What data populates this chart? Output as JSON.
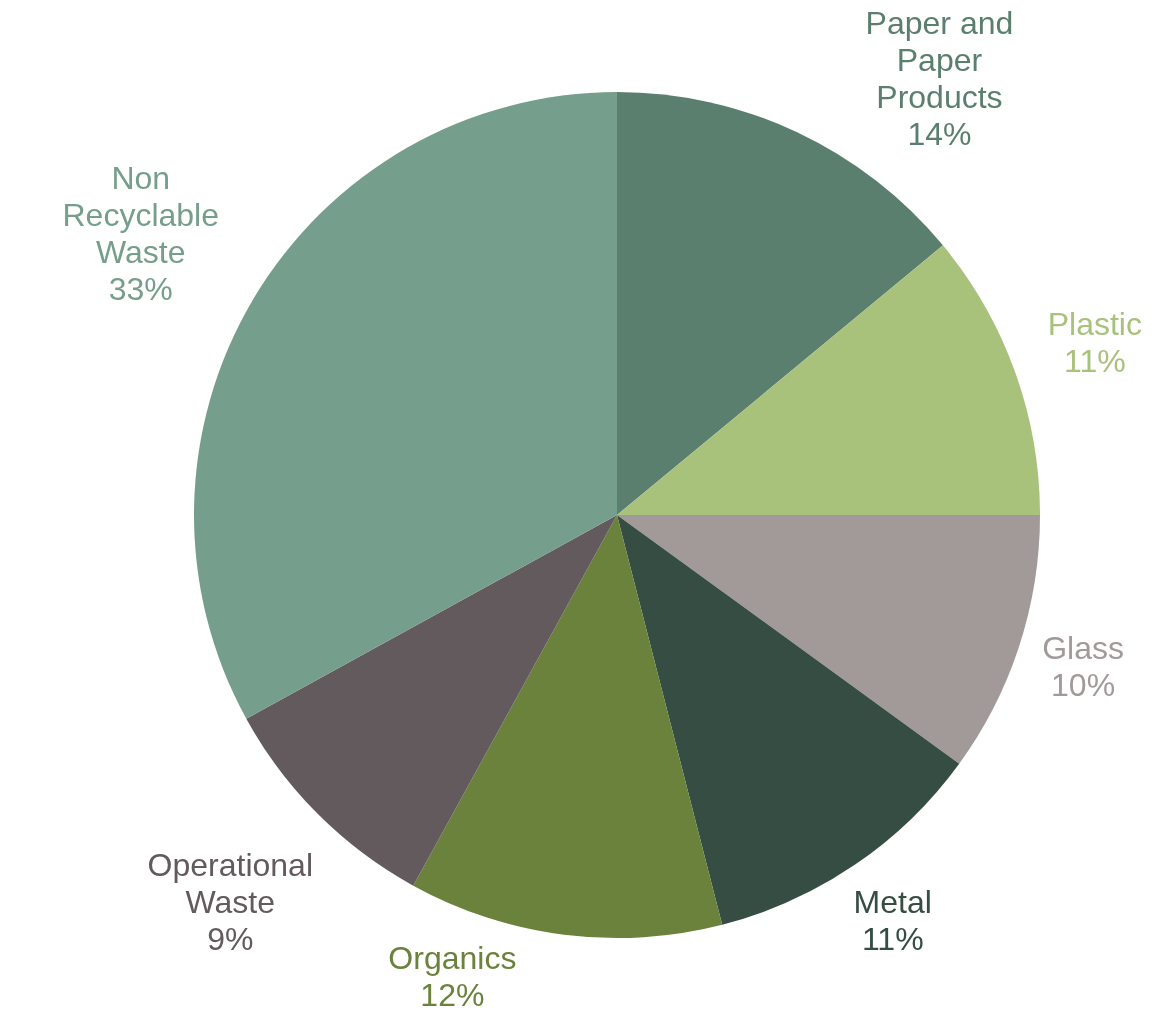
{
  "chart_data": {
    "type": "pie",
    "categories": [
      "Paper and Paper Products",
      "Plastic",
      "Glass",
      "Metal",
      "Organics",
      "Operational Waste",
      "Non Recyclable Waste"
    ],
    "values": [
      14,
      11,
      10,
      11,
      12,
      9,
      33
    ],
    "value_labels": [
      "14%",
      "11%",
      "10%",
      "11%",
      "12%",
      "9%",
      "33%"
    ],
    "colors": [
      "#5a7f6f",
      "#a8c27c",
      "#a29999",
      "#354d43",
      "#6a823c",
      "#625a5d",
      "#769e8c"
    ]
  }
}
